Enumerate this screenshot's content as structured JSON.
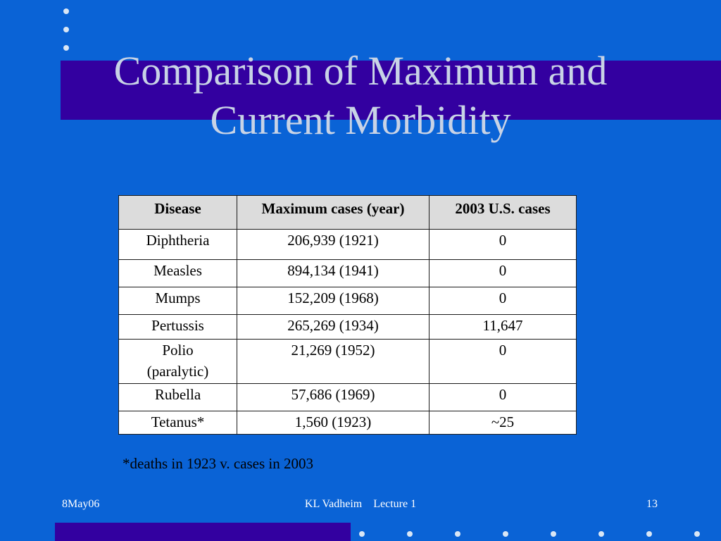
{
  "slide": {
    "title_line1": "Comparison of Maximum and",
    "title_line2": "Current Morbidity"
  },
  "table": {
    "headers": [
      "Disease",
      "Maximum cases  (year)",
      "2003 U.S. cases"
    ],
    "rows": [
      {
        "disease": "Diphtheria",
        "max": "206,939 (1921)",
        "current": "0"
      },
      {
        "disease": "Measles",
        "max": "894,134 (1941)",
        "current": "0"
      },
      {
        "disease": "Mumps",
        "max": "152,209 (1968)",
        "current": "0"
      },
      {
        "disease": "Pertussis",
        "max": "265,269 (1934)",
        "current": "11,647"
      },
      {
        "disease_line1": "Polio",
        "disease_line2": "(paralytic)",
        "max": "21,269 (1952)",
        "current": "0"
      },
      {
        "disease": "Rubella",
        "max": "57,686 (1969)",
        "current": "0"
      },
      {
        "disease": "Tetanus*",
        "max": "1,560 (1923)",
        "current": "~25"
      }
    ]
  },
  "footnote": "*deaths in 1923 v. cases in 2003",
  "footer": {
    "date": "8May06",
    "center": "KL Vadheim    Lecture 1",
    "page": "13"
  },
  "colors": {
    "background": "#0a63d6",
    "band": "#3300a0",
    "title_text": "#c8d3e6"
  }
}
